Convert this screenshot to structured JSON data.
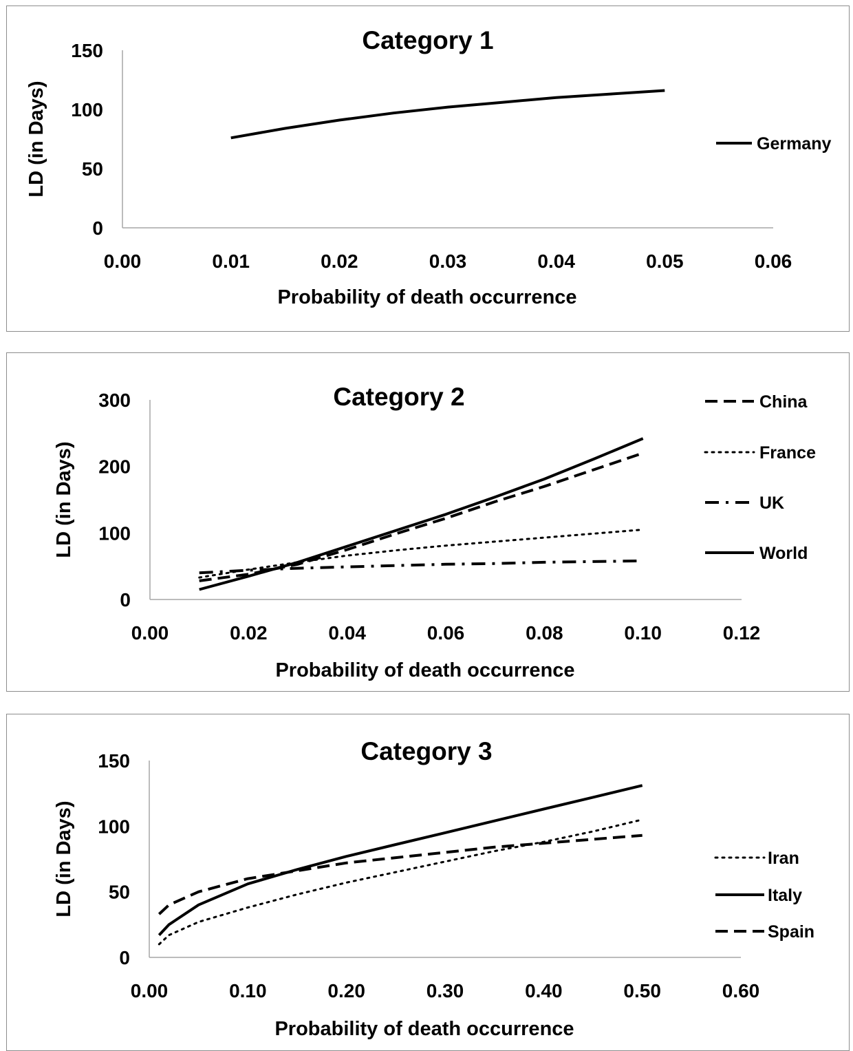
{
  "chart_data": [
    {
      "type": "line",
      "title": "Category 1",
      "xlabel": "Probability of death occurrence",
      "ylabel": "LD (in Days)",
      "xlim": [
        0,
        0.06
      ],
      "ylim": [
        0,
        150
      ],
      "x_ticks": [
        "0.00",
        "0.01",
        "0.02",
        "0.03",
        "0.04",
        "0.05",
        "0.06"
      ],
      "y_ticks": [
        "0",
        "50",
        "100",
        "150"
      ],
      "grid": false,
      "legend_position": "right",
      "series": [
        {
          "name": "Germany",
          "style": "solid",
          "x": [
            0.01,
            0.015,
            0.02,
            0.025,
            0.03,
            0.035,
            0.04,
            0.045,
            0.05
          ],
          "values": [
            76,
            84,
            91,
            97,
            102,
            106,
            110,
            113,
            116
          ]
        }
      ]
    },
    {
      "type": "line",
      "title": "Category 2",
      "xlabel": "Probability of death occurrence",
      "ylabel": "LD (in Days)",
      "xlim": [
        0,
        0.12
      ],
      "ylim": [
        0,
        300
      ],
      "x_ticks": [
        "0.00",
        "0.02",
        "0.04",
        "0.06",
        "0.08",
        "0.10",
        "0.12"
      ],
      "y_ticks": [
        "0",
        "100",
        "200",
        "300"
      ],
      "grid": false,
      "legend_position": "right",
      "series": [
        {
          "name": "China",
          "style": "dashed",
          "x": [
            0.01,
            0.02,
            0.03,
            0.04,
            0.05,
            0.06,
            0.07,
            0.08,
            0.09,
            0.1
          ],
          "values": [
            28,
            38,
            53,
            75,
            99,
            122,
            147,
            170,
            195,
            220
          ]
        },
        {
          "name": "France",
          "style": "dotted",
          "x": [
            0.01,
            0.02,
            0.03,
            0.04,
            0.05,
            0.06,
            0.07,
            0.08,
            0.09,
            0.1
          ],
          "values": [
            33,
            45,
            56,
            66,
            74,
            81,
            87,
            93,
            99,
            105
          ]
        },
        {
          "name": "UK",
          "style": "dash-dot",
          "x": [
            0.01,
            0.02,
            0.03,
            0.04,
            0.05,
            0.06,
            0.07,
            0.08,
            0.09,
            0.1
          ],
          "values": [
            40,
            44,
            47,
            49,
            51,
            53,
            54,
            56,
            57,
            58
          ]
        },
        {
          "name": "World",
          "style": "solid",
          "x": [
            0.01,
            0.02,
            0.03,
            0.04,
            0.05,
            0.06,
            0.07,
            0.08,
            0.09,
            0.1
          ],
          "values": [
            15,
            35,
            56,
            80,
            104,
            128,
            154,
            181,
            211,
            242
          ]
        }
      ]
    },
    {
      "type": "line",
      "title": "Category 3",
      "xlabel": "Probability of death occurrence",
      "ylabel": "LD (in Days)",
      "xlim": [
        0,
        0.6
      ],
      "ylim": [
        0,
        150
      ],
      "x_ticks": [
        "0.00",
        "0.10",
        "0.20",
        "0.30",
        "0.40",
        "0.50",
        "0.60"
      ],
      "y_ticks": [
        "0",
        "50",
        "100",
        "150"
      ],
      "grid": false,
      "legend_position": "right",
      "series": [
        {
          "name": "Iran",
          "style": "dotted",
          "x": [
            0.01,
            0.02,
            0.05,
            0.1,
            0.15,
            0.2,
            0.25,
            0.3,
            0.35,
            0.4,
            0.45,
            0.5
          ],
          "values": [
            10,
            17,
            27,
            38,
            48,
            57,
            65,
            73,
            81,
            88,
            96,
            105
          ]
        },
        {
          "name": "Italy",
          "style": "solid",
          "x": [
            0.01,
            0.02,
            0.05,
            0.1,
            0.15,
            0.2,
            0.25,
            0.3,
            0.35,
            0.4,
            0.45,
            0.5
          ],
          "values": [
            17,
            25,
            40,
            56,
            67,
            77,
            86,
            95,
            104,
            113,
            122,
            131
          ]
        },
        {
          "name": "Spain",
          "style": "dashed",
          "x": [
            0.01,
            0.02,
            0.05,
            0.1,
            0.15,
            0.2,
            0.25,
            0.3,
            0.35,
            0.4,
            0.45,
            0.5
          ],
          "values": [
            33,
            40,
            50,
            60,
            66,
            72,
            76,
            80,
            84,
            87,
            90,
            93
          ]
        }
      ]
    }
  ]
}
